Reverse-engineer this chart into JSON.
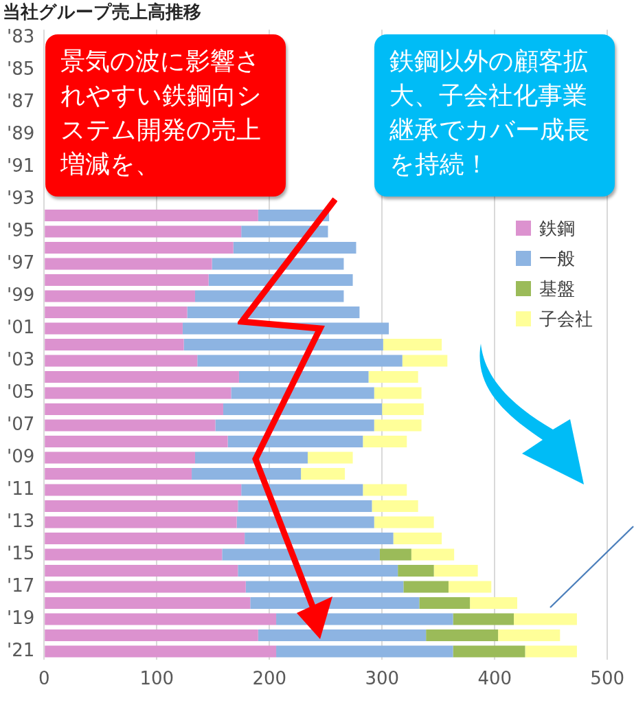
{
  "chart_data": {
    "type": "bar",
    "orientation": "horizontal",
    "stacked": true,
    "title": "当社グループ売上高推移",
    "categories": [
      "'83",
      null,
      "'85",
      null,
      "'87",
      null,
      "'89",
      null,
      "'91",
      null,
      "'93",
      null,
      "'95",
      null,
      "'97",
      null,
      "'99",
      null,
      "'01",
      null,
      "'03",
      null,
      "'05",
      null,
      "'07",
      null,
      "'09",
      null,
      "'11",
      null,
      "'13",
      null,
      "'15",
      null,
      "'17",
      null,
      "'19",
      null,
      "'21"
    ],
    "series": [
      {
        "name": "鉄鋼",
        "color": "#dc92cf",
        "values": [
          null,
          null,
          null,
          null,
          null,
          null,
          null,
          null,
          null,
          null,
          null,
          190,
          175,
          168,
          149,
          146,
          134,
          127,
          123,
          124,
          136,
          173,
          166,
          159,
          152,
          163,
          134,
          131,
          175,
          172,
          171,
          178,
          158,
          172,
          179,
          183,
          206,
          190,
          206
        ]
      },
      {
        "name": "一般",
        "color": "#8db4e2",
        "values": [
          null,
          null,
          null,
          null,
          null,
          null,
          null,
          null,
          null,
          null,
          null,
          63,
          77,
          109,
          117,
          128,
          132,
          153,
          183,
          177,
          182,
          115,
          127,
          141,
          141,
          120,
          100,
          97,
          108,
          119,
          122,
          132,
          140,
          142,
          140,
          150,
          157,
          149,
          157
        ]
      },
      {
        "name": "基盤",
        "color": "#9bbb59",
        "values": [
          null,
          null,
          null,
          null,
          null,
          null,
          null,
          null,
          null,
          null,
          null,
          null,
          null,
          null,
          null,
          null,
          null,
          null,
          null,
          null,
          null,
          null,
          null,
          null,
          null,
          null,
          null,
          null,
          null,
          null,
          null,
          null,
          28,
          32,
          40,
          45,
          54,
          64,
          64
        ]
      },
      {
        "name": "子会社",
        "color": "#ffff99",
        "values": [
          null,
          null,
          null,
          null,
          null,
          null,
          null,
          null,
          null,
          null,
          null,
          null,
          null,
          null,
          null,
          null,
          null,
          null,
          null,
          52,
          40,
          44,
          42,
          37,
          42,
          39,
          40,
          39,
          39,
          41,
          53,
          43,
          38,
          39,
          38,
          42,
          56,
          55,
          46
        ]
      }
    ],
    "xlim": [
      0,
      500
    ],
    "xticks": [
      0,
      100,
      200,
      300,
      400,
      500
    ],
    "grid": "x",
    "legend": "top right",
    "annotations": [
      "景気の波に影響されやすい鉄鋼向システム開発の売上増減を、",
      "鉄鋼以外の顧客拡大、子会社化事業継承でカバー成長を持続！"
    ]
  }
}
